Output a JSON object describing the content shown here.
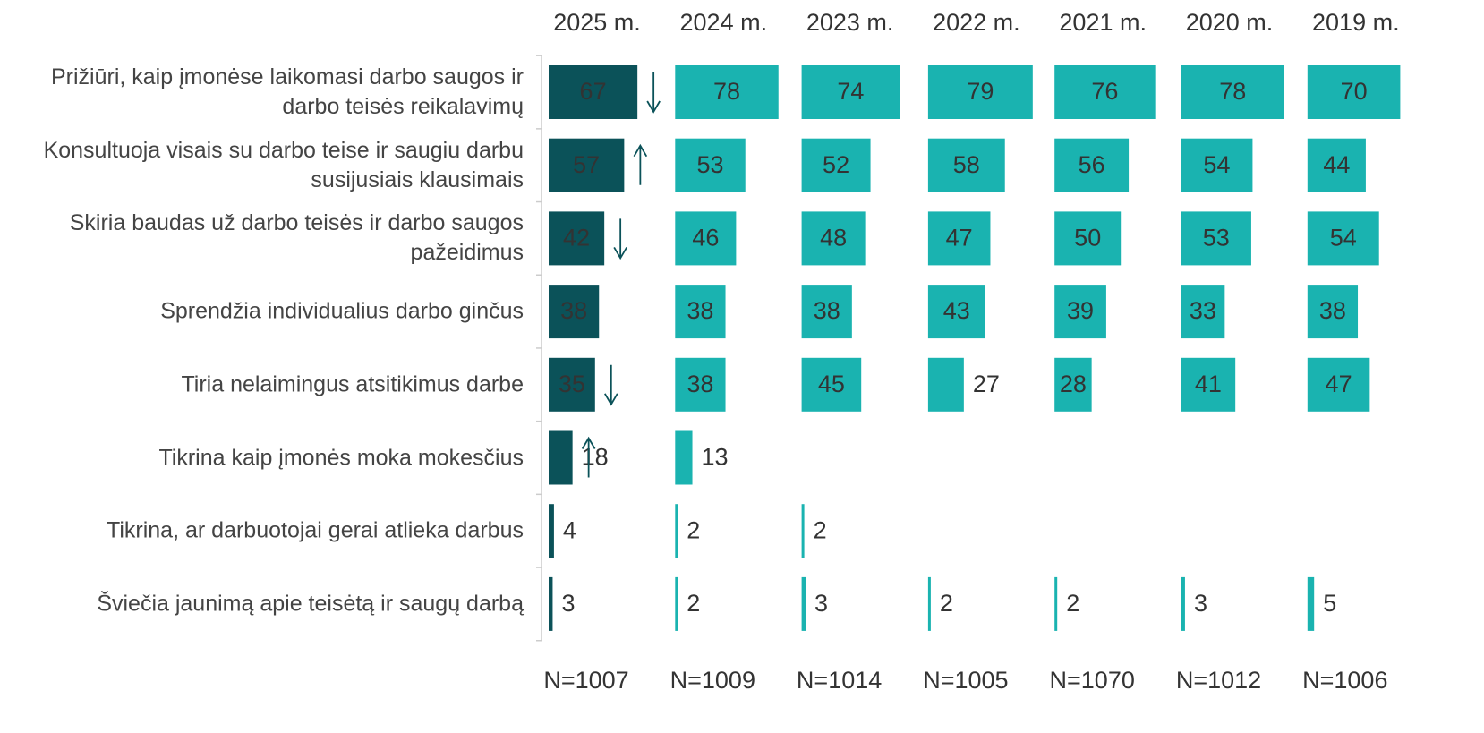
{
  "chart_data": {
    "type": "bar",
    "orientation": "horizontal",
    "categories": [
      "Prižiūri, kaip įmonėse laikomasi darbo saugos ir darbo teisės reikalavimų",
      "Konsultuoja visais su darbo teise ir saugiu darbu susijusiais klausimais",
      "Skiria baudas už darbo teisės ir darbo saugos pažeidimus",
      "Sprendžia individualius darbo ginčus",
      "Tiria nelaimingus atsitikimus darbe",
      "Tikrina kaip įmonės moka mokesčius",
      "Tikrina, ar darbuotojai gerai atlieka darbus",
      "Šviečia jaunimą apie teisėtą ir saugų darbą"
    ],
    "xlim": [
      0,
      100
    ],
    "series": [
      {
        "name": "2025 m.",
        "n": "N=1007",
        "color": "#0b5259",
        "values": [
          67,
          57,
          42,
          38,
          35,
          18,
          4,
          3
        ],
        "arrows": [
          "down",
          "up",
          "down",
          null,
          "down",
          "up",
          null,
          null
        ]
      },
      {
        "name": "2024 m.",
        "n": "N=1009",
        "color": "#1ab3b0",
        "values": [
          78,
          53,
          46,
          38,
          38,
          13,
          2,
          2
        ]
      },
      {
        "name": "2023 m.",
        "n": "N=1014",
        "color": "#1ab3b0",
        "values": [
          74,
          52,
          48,
          38,
          45,
          null,
          2,
          3
        ]
      },
      {
        "name": "2022 m.",
        "n": "N=1005",
        "color": "#1ab3b0",
        "values": [
          79,
          58,
          47,
          43,
          27,
          null,
          null,
          2
        ]
      },
      {
        "name": "2021 m.",
        "n": "N=1070",
        "color": "#1ab3b0",
        "values": [
          76,
          56,
          50,
          39,
          28,
          null,
          null,
          2
        ]
      },
      {
        "name": "2020 m.",
        "n": "N=1012",
        "color": "#1ab3b0",
        "values": [
          78,
          54,
          53,
          33,
          41,
          null,
          null,
          3
        ]
      },
      {
        "name": "2019 m.",
        "n": "N=1006",
        "color": "#1ab3b0",
        "values": [
          70,
          44,
          54,
          38,
          47,
          null,
          null,
          5
        ]
      }
    ]
  }
}
